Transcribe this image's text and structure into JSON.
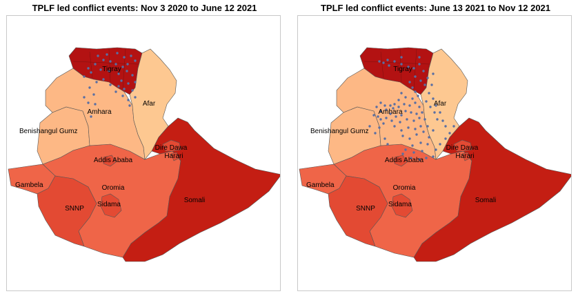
{
  "panels": [
    {
      "title": "TPLF led conflict events: Nov 3 2020 to June 12 2021",
      "region_colors": {
        "Tigray": "#b31212",
        "Afar": "#fdc891",
        "Amhara": "#fdb885",
        "Benishangul Gumz": "#fdb885",
        "Addis Ababa": "#e34a33",
        "Dire Dawa": "#e34a33",
        "Harari": "#e34a33",
        "Gambela": "#ef6548",
        "Oromia": "#ef6548",
        "SNNP": "#e34a33",
        "Sidama": "#e34a33",
        "Somali": "#c41e13"
      },
      "events": [
        [
          132,
          58
        ],
        [
          145,
          56
        ],
        [
          160,
          54
        ],
        [
          170,
          60
        ],
        [
          180,
          58
        ],
        [
          186,
          65
        ],
        [
          175,
          70
        ],
        [
          168,
          74
        ],
        [
          158,
          70
        ],
        [
          150,
          66
        ],
        [
          140,
          64
        ],
        [
          128,
          70
        ],
        [
          118,
          76
        ],
        [
          112,
          88
        ],
        [
          122,
          82
        ],
        [
          136,
          78
        ],
        [
          148,
          80
        ],
        [
          162,
          84
        ],
        [
          174,
          80
        ],
        [
          182,
          86
        ],
        [
          186,
          96
        ],
        [
          176,
          98
        ],
        [
          166,
          94
        ],
        [
          170,
          106
        ],
        [
          182,
          108
        ],
        [
          186,
          118
        ],
        [
          176,
          122
        ],
        [
          168,
          116
        ],
        [
          158,
          110
        ],
        [
          150,
          100
        ],
        [
          140,
          92
        ],
        [
          130,
          96
        ],
        [
          120,
          104
        ],
        [
          126,
          114
        ],
        [
          112,
          118
        ],
        [
          118,
          126
        ],
        [
          128,
          128
        ],
        [
          122,
          146
        ],
        [
          162,
          102
        ],
        [
          178,
          130
        ]
      ],
      "labels": {
        "Tigray": "Tigray",
        "Afar": "Afar",
        "Amhara": "Amhara",
        "Benishangul Gumz": "Benishangul Gumz",
        "Dire Dawa": "Dire Dawa",
        "Harari": "Harari",
        "Addis Ababa": "Addis Ababa",
        "Gambela": "Gambela",
        "Oromia": "Oromia",
        "SNNP": "SNNP",
        "Sidama": "Sidama",
        "Somali": "Somali"
      }
    },
    {
      "title": "TPLF led conflict events: June 13 2021 to Nov 12 2021",
      "region_colors": {
        "Tigray": "#b31212",
        "Afar": "#fdc891",
        "Amhara": "#fdb885",
        "Benishangul Gumz": "#fdb885",
        "Addis Ababa": "#e34a33",
        "Dire Dawa": "#e34a33",
        "Harari": "#e34a33",
        "Gambela": "#ef6548",
        "Oromia": "#ef6548",
        "SNNP": "#e34a33",
        "Sidama": "#e34a33",
        "Somali": "#c41e13"
      },
      "events": [
        [
          118,
          66
        ],
        [
          124,
          68
        ],
        [
          132,
          72
        ],
        [
          140,
          66
        ],
        [
          150,
          70
        ],
        [
          160,
          74
        ],
        [
          168,
          76
        ],
        [
          176,
          70
        ],
        [
          182,
          80
        ],
        [
          170,
          88
        ],
        [
          162,
          96
        ],
        [
          166,
          104
        ],
        [
          170,
          110
        ],
        [
          174,
          116
        ],
        [
          166,
          120
        ],
        [
          156,
          118
        ],
        [
          150,
          112
        ],
        [
          146,
          122
        ],
        [
          140,
          128
        ],
        [
          134,
          130
        ],
        [
          126,
          130
        ],
        [
          120,
          126
        ],
        [
          114,
          132
        ],
        [
          120,
          138
        ],
        [
          128,
          136
        ],
        [
          138,
          134
        ],
        [
          146,
          132
        ],
        [
          154,
          128
        ],
        [
          162,
          130
        ],
        [
          170,
          126
        ],
        [
          176,
          132
        ],
        [
          180,
          140
        ],
        [
          172,
          142
        ],
        [
          164,
          140
        ],
        [
          156,
          138
        ],
        [
          150,
          144
        ],
        [
          142,
          146
        ],
        [
          134,
          142
        ],
        [
          128,
          148
        ],
        [
          120,
          150
        ],
        [
          116,
          146
        ],
        [
          110,
          144
        ],
        [
          124,
          156
        ],
        [
          136,
          152
        ],
        [
          148,
          154
        ],
        [
          158,
          150
        ],
        [
          168,
          152
        ],
        [
          176,
          148
        ],
        [
          184,
          150
        ],
        [
          178,
          160
        ],
        [
          170,
          164
        ],
        [
          160,
          162
        ],
        [
          150,
          166
        ],
        [
          140,
          160
        ],
        [
          152,
          174
        ],
        [
          162,
          178
        ],
        [
          172,
          172
        ],
        [
          182,
          168
        ],
        [
          188,
          160
        ],
        [
          178,
          184
        ],
        [
          166,
          188
        ],
        [
          156,
          194
        ],
        [
          168,
          198
        ],
        [
          180,
          196
        ],
        [
          188,
          186
        ],
        [
          190,
          176
        ],
        [
          196,
          166
        ],
        [
          202,
          150
        ],
        [
          198,
          140
        ],
        [
          192,
          132
        ],
        [
          186,
          124
        ],
        [
          190,
          112
        ],
        [
          184,
          100
        ],
        [
          178,
          94
        ],
        [
          188,
          90
        ],
        [
          194,
          100
        ],
        [
          196,
          120
        ],
        [
          200,
          130
        ],
        [
          206,
          140
        ],
        [
          210,
          152
        ],
        [
          214,
          160
        ],
        [
          220,
          170
        ],
        [
          214,
          178
        ],
        [
          206,
          186
        ],
        [
          200,
          194
        ],
        [
          196,
          204
        ],
        [
          186,
          206
        ],
        [
          176,
          208
        ],
        [
          164,
          206
        ],
        [
          152,
          200
        ],
        [
          130,
          186
        ],
        [
          126,
          178
        ],
        [
          112,
          170
        ],
        [
          118,
          162
        ],
        [
          104,
          160
        ],
        [
          226,
          160
        ],
        [
          196,
          84
        ],
        [
          176,
          60
        ],
        [
          150,
          60
        ],
        [
          130,
          64
        ]
      ],
      "labels": {
        "Tigray": "Tigray",
        "Afar": "Afar",
        "Amhara": "Amhara",
        "Benishangul Gumz": "Benishangul Gumz",
        "Dire Dawa": "Dire Dawa",
        "Harari": "Harari",
        "Addis Ababa": "Addis Ababa",
        "Gambela": "Gambela",
        "Oromia": "Oromia",
        "SNNP": "SNNP",
        "Sidama": "Sidama",
        "Somali": "Somali"
      }
    }
  ],
  "dot_color": "#5a6fa3"
}
